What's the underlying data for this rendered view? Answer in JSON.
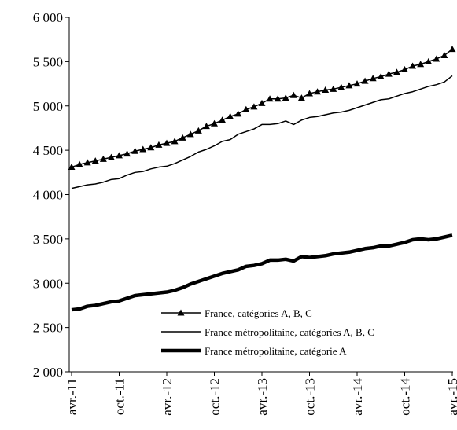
{
  "chart_data": {
    "type": "line",
    "categories": [
      "avr.-11",
      null,
      null,
      null,
      null,
      null,
      "oct.-11",
      null,
      null,
      null,
      null,
      null,
      "avr.-12",
      null,
      null,
      null,
      null,
      null,
      "oct.-12",
      null,
      null,
      null,
      null,
      null,
      "avr.-13",
      null,
      null,
      null,
      null,
      null,
      "oct.-13",
      null,
      null,
      null,
      null,
      null,
      "avr.-14",
      null,
      null,
      null,
      null,
      null,
      "oct.-14",
      null,
      null,
      null,
      null,
      null,
      "avr.-15"
    ],
    "series": [
      {
        "name": "France, catégories A, B, C",
        "color": "#000000",
        "width": 1.5,
        "marker": "triangle",
        "values": [
          4310,
          4340,
          4360,
          4380,
          4400,
          4420,
          4440,
          4460,
          4490,
          4510,
          4530,
          4560,
          4580,
          4600,
          4640,
          4680,
          4720,
          4770,
          4800,
          4840,
          4880,
          4910,
          4960,
          4990,
          5030,
          5080,
          5080,
          5090,
          5120,
          5090,
          5140,
          5160,
          5180,
          5190,
          5210,
          5230,
          5250,
          5280,
          5310,
          5330,
          5360,
          5380,
          5410,
          5450,
          5470,
          5500,
          5530,
          5570,
          5640
        ]
      },
      {
        "name": "France métropolitaine, catégories A, B, C",
        "color": "#000000",
        "width": 1.5,
        "marker": null,
        "values": [
          4070,
          4090,
          4110,
          4120,
          4140,
          4170,
          4180,
          4220,
          4250,
          4260,
          4290,
          4310,
          4320,
          4350,
          4390,
          4430,
          4480,
          4510,
          4550,
          4600,
          4620,
          4680,
          4710,
          4740,
          4790,
          4790,
          4800,
          4830,
          4790,
          4840,
          4870,
          4880,
          4900,
          4920,
          4930,
          4950,
          4980,
          5010,
          5040,
          5070,
          5080,
          5110,
          5140,
          5160,
          5190,
          5220,
          5240,
          5270,
          5340
        ]
      },
      {
        "name": "France métropolitaine, catégorie A",
        "color": "#000000",
        "width": 4.5,
        "marker": null,
        "values": [
          2700,
          2710,
          2740,
          2750,
          2770,
          2790,
          2800,
          2830,
          2860,
          2870,
          2880,
          2890,
          2900,
          2920,
          2950,
          2990,
          3020,
          3050,
          3080,
          3110,
          3130,
          3150,
          3190,
          3200,
          3220,
          3260,
          3260,
          3270,
          3250,
          3300,
          3290,
          3300,
          3310,
          3330,
          3340,
          3350,
          3370,
          3390,
          3400,
          3420,
          3420,
          3440,
          3460,
          3490,
          3500,
          3490,
          3500,
          3520,
          3540
        ]
      }
    ],
    "ylim": [
      2000,
      6000
    ],
    "yticks": [
      {
        "value": 2000,
        "label": "2 000"
      },
      {
        "value": 2500,
        "label": "2 500"
      },
      {
        "value": 3000,
        "label": "3 000"
      },
      {
        "value": 3500,
        "label": "3 500"
      },
      {
        "value": 4000,
        "label": "4 000"
      },
      {
        "value": 4500,
        "label": "4 500"
      },
      {
        "value": 5000,
        "label": "5 000"
      },
      {
        "value": 5500,
        "label": "5 500"
      },
      {
        "value": 6000,
        "label": "6 000"
      }
    ],
    "grid": false
  }
}
